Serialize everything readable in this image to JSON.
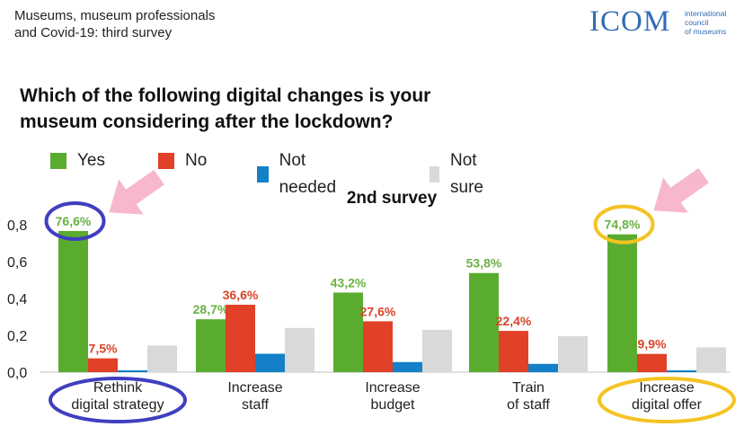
{
  "header": {
    "line1": "Museums, museum professionals",
    "line2": "and Covid-19: third survey"
  },
  "logo": {
    "word": "ICOM",
    "sub1": "international",
    "sub2": "council",
    "sub3": "of museums"
  },
  "question": {
    "line1": "Which of the following digital changes is your",
    "line2": "museum considering after the lockdown?"
  },
  "colors": {
    "yes": "#5aac2e",
    "no": "#e04127",
    "not_needed": "#1380c8",
    "not_sure": "#d9d9d9",
    "label_yes": "#6ab143",
    "label_no": "#d9442b",
    "circle_blue": "#3f3fbf",
    "circle_yellow": "#f5c322",
    "arrow_pink": "#f6b7cf"
  },
  "chart_data": {
    "type": "bar",
    "title": "2nd survey",
    "categories": [
      [
        "Rethink",
        "digital strategy"
      ],
      [
        "Increase",
        "staff"
      ],
      [
        "Increase",
        "budget"
      ],
      [
        "Train",
        "of staff"
      ],
      [
        "Increase",
        "digital offer"
      ]
    ],
    "series": [
      {
        "name": "Yes",
        "key": "yes",
        "values": [
          0.766,
          0.287,
          0.432,
          0.538,
          0.748
        ],
        "labels": [
          "76,6%",
          "28,7%",
          "43,2%",
          "53,8%",
          "74,8%"
        ]
      },
      {
        "name": "No",
        "key": "no",
        "values": [
          0.075,
          0.366,
          0.276,
          0.224,
          0.099
        ],
        "labels": [
          "7,5%",
          "36,6%",
          "27,6%",
          "22,4%",
          "9,9%"
        ]
      },
      {
        "name": "Not needed",
        "key": "not_needed",
        "values": [
          0.01,
          0.1,
          0.055,
          0.045,
          0.01
        ],
        "labels": []
      },
      {
        "name": "Not sure",
        "key": "not_sure",
        "values": [
          0.145,
          0.24,
          0.23,
          0.195,
          0.135
        ],
        "labels": []
      }
    ],
    "yticks": [
      "0,0",
      "0,2",
      "0,4",
      "0,6",
      "0,8"
    ],
    "ylim": [
      0,
      0.8
    ],
    "legend": "top",
    "highlights": [
      {
        "category_index": 0,
        "style": "blue"
      },
      {
        "category_index": 4,
        "style": "yellow"
      }
    ]
  }
}
